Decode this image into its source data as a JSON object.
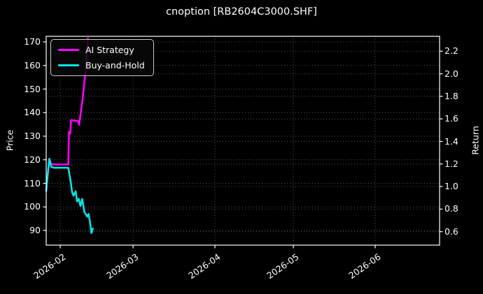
{
  "title": "cnoption [RB2604C3000.SHF]",
  "colors": {
    "background": "#000000",
    "text": "#ffffff",
    "spine": "#ffffff",
    "grid": "#555555",
    "ai_strategy": "#ff00ff",
    "buy_and_hold": "#00e5e5",
    "signal_marker": "#7f1020"
  },
  "legend": {
    "items": [
      {
        "label": "AI Strategy",
        "color": "#ff00ff"
      },
      {
        "label": "Buy-and-Hold",
        "color": "#00e5e5"
      }
    ]
  },
  "chart_data": {
    "type": "line",
    "title": "cnoption [RB2604C3000.SHF]",
    "grid": "dotted horizontal lines at both price and return ticks; dotted vertical lines at month ticks",
    "legend_position": "upper left",
    "x_axis": {
      "start_date": "2026-01-27",
      "tick_labels": [
        "2026-02",
        "2026-03",
        "2026-04",
        "2026-05",
        "2026-06"
      ],
      "tick_days": [
        5.3,
        32.9,
        63.9,
        93.6,
        124.6
      ],
      "range_days": [
        0,
        149
      ]
    },
    "y_left": {
      "label": "Price",
      "ticks": [
        90,
        100,
        110,
        120,
        130,
        140,
        150,
        160,
        170
      ],
      "range": [
        83.8,
        172.4
      ]
    },
    "y_right": {
      "label": "Return",
      "ticks": [
        0.6,
        0.8,
        1.0,
        1.2,
        1.4,
        1.6,
        1.8,
        2.0,
        2.2
      ],
      "range": [
        0.48,
        2.33
      ]
    },
    "series": [
      {
        "name": "AI Strategy",
        "color": "#ff00ff",
        "axis": "left",
        "points": [
          [
            0,
            106.8
          ],
          [
            0.5,
            113.0
          ],
          [
            1.2,
            120.4
          ],
          [
            1.9,
            118.2
          ],
          [
            2.9,
            118.0
          ],
          [
            8.35,
            118.0
          ],
          [
            8.62,
            131.8
          ],
          [
            9.15,
            131.2
          ],
          [
            9.4,
            136.8
          ],
          [
            12.05,
            136.4
          ],
          [
            12.45,
            134.8
          ],
          [
            13.8,
            146.0
          ],
          [
            14.85,
            157.0
          ],
          [
            15.4,
            164.0
          ],
          [
            15.8,
            171.5
          ]
        ]
      },
      {
        "name": "Buy-and-Hold",
        "color": "#00e5e5",
        "axis": "left",
        "points": [
          [
            0,
            106.8
          ],
          [
            0.5,
            113.0
          ],
          [
            1.2,
            120.4
          ],
          [
            1.9,
            117.0
          ],
          [
            2.9,
            116.6
          ],
          [
            8.35,
            116.6
          ],
          [
            9.3,
            110.5
          ],
          [
            9.8,
            106.3
          ],
          [
            10.35,
            104.8
          ],
          [
            11.15,
            106.6
          ],
          [
            11.7,
            102.3
          ],
          [
            12.35,
            103.4
          ],
          [
            13.0,
            100.4
          ],
          [
            13.65,
            103.4
          ],
          [
            14.45,
            97.9
          ],
          [
            15.5,
            95.9
          ],
          [
            16.05,
            97.0
          ],
          [
            16.6,
            93.5
          ],
          [
            17.1,
            88.9
          ],
          [
            17.65,
            90.8
          ]
        ]
      }
    ],
    "markers": [
      {
        "day": 12.7,
        "price": 127.9,
        "color": "#7f1020"
      },
      {
        "day": 9.8,
        "price": 117.6,
        "color": "#7f1020"
      }
    ]
  }
}
